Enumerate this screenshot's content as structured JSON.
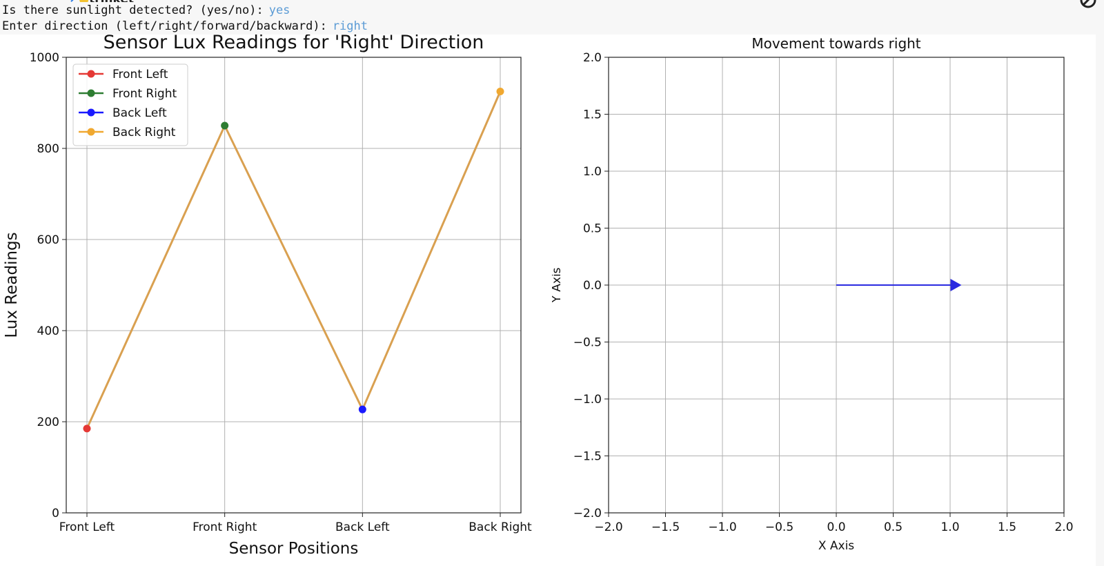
{
  "console": {
    "prompt1": "Is there sunlight detected? (yes/no):",
    "answer1": "yes",
    "prompt2": "Enter direction (left/right/forward/backward):",
    "answer2": "right",
    "logo_text": "trinket"
  },
  "chart_data": [
    {
      "type": "line",
      "title": "Sensor Lux Readings for 'Right' Direction",
      "xlabel": "Sensor Positions",
      "ylabel": "Lux Readings",
      "categories": [
        "Front Left",
        "Front Right",
        "Back Left",
        "Back Right"
      ],
      "values": [
        185,
        850,
        227,
        925
      ],
      "line_color": "#d9a050",
      "ylim": [
        0,
        1000
      ],
      "yticks": [
        0,
        200,
        400,
        600,
        800,
        1000
      ],
      "grid": true,
      "legend_position": "top-left",
      "points": [
        {
          "name": "Front Left",
          "category": "Front Left",
          "value": 185,
          "color": "#e53935"
        },
        {
          "name": "Front Right",
          "category": "Front Right",
          "value": 850,
          "color": "#2e7d32"
        },
        {
          "name": "Back Left",
          "category": "Back Left",
          "value": 227,
          "color": "#1a1aff"
        },
        {
          "name": "Back Right",
          "category": "Back Right",
          "value": 925,
          "color": "#f0a830"
        }
      ]
    },
    {
      "type": "vector",
      "title": "Movement towards right",
      "xlabel": "X Axis",
      "ylabel": "Y Axis",
      "xlim": [
        -2.0,
        2.0
      ],
      "ylim": [
        -2.0,
        2.0
      ],
      "ticks": [
        -2.0,
        -1.5,
        -1.0,
        -0.5,
        0.0,
        0.5,
        1.0,
        1.5,
        2.0
      ],
      "tick_labels": [
        "−2.0",
        "−1.5",
        "−1.0",
        "−0.5",
        "0.0",
        "0.5",
        "1.0",
        "1.5",
        "2.0"
      ],
      "grid": true,
      "arrow": {
        "x0": 0,
        "y0": 0,
        "x1": 1.1,
        "y1": 0,
        "color": "#2a2ae0"
      }
    }
  ]
}
